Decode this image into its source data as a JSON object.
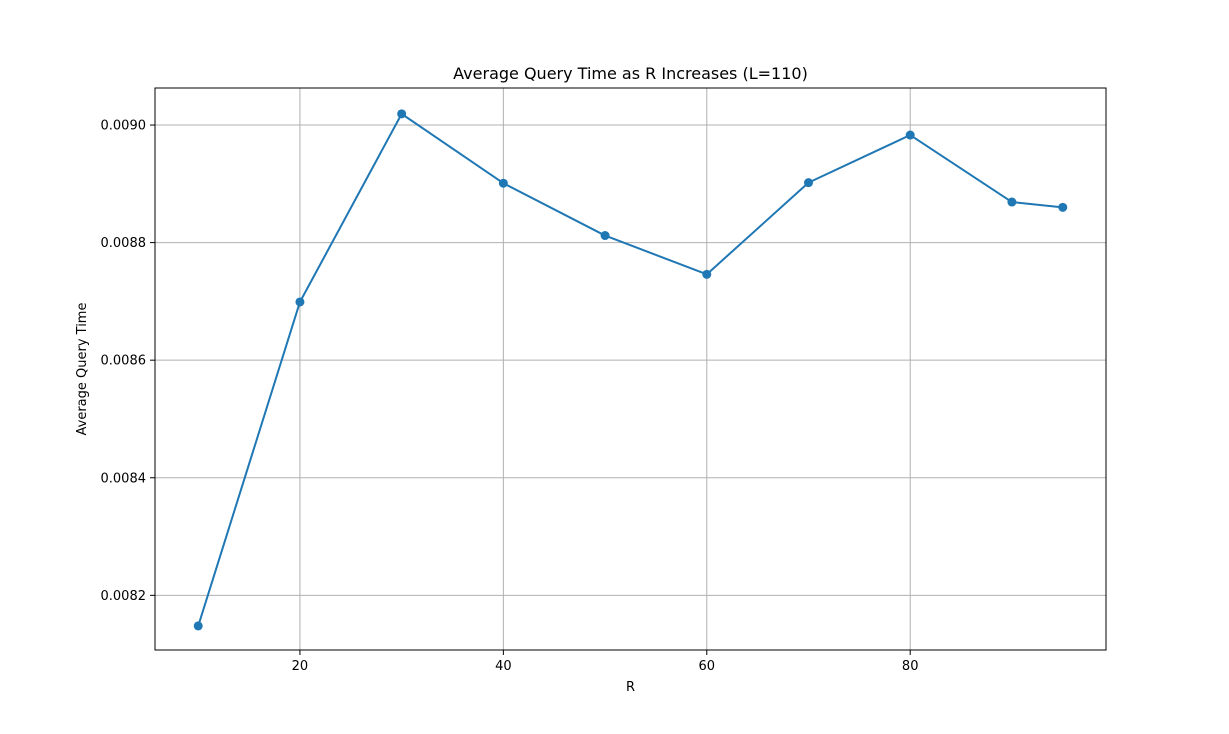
{
  "chart_data": {
    "type": "line",
    "title": "Average Query Time as R Increases (L=110)",
    "xlabel": "R",
    "ylabel": "Average Query Time",
    "x": [
      10,
      20,
      30,
      40,
      50,
      60,
      70,
      80,
      90,
      95
    ],
    "series": [
      {
        "values": [
          0.008148,
          0.008699,
          0.009019,
          0.008901,
          0.008812,
          0.008746,
          0.008902,
          0.008983,
          0.008869,
          0.00886
        ],
        "color": "#1f77b4",
        "marker": "circle"
      }
    ],
    "xlim": [
      5.75,
      99.25
    ],
    "ylim": [
      0.008107,
      0.009063
    ],
    "xticks": [
      20,
      40,
      60,
      80
    ],
    "xtick_labels": [
      "20",
      "40",
      "60",
      "80"
    ],
    "yticks": [
      0.0082,
      0.0084,
      0.0086,
      0.0088,
      0.009
    ],
    "ytick_labels": [
      "0.0082",
      "0.0084",
      "0.0086",
      "0.0088",
      "0.0090"
    ],
    "grid": true,
    "legend": false
  }
}
